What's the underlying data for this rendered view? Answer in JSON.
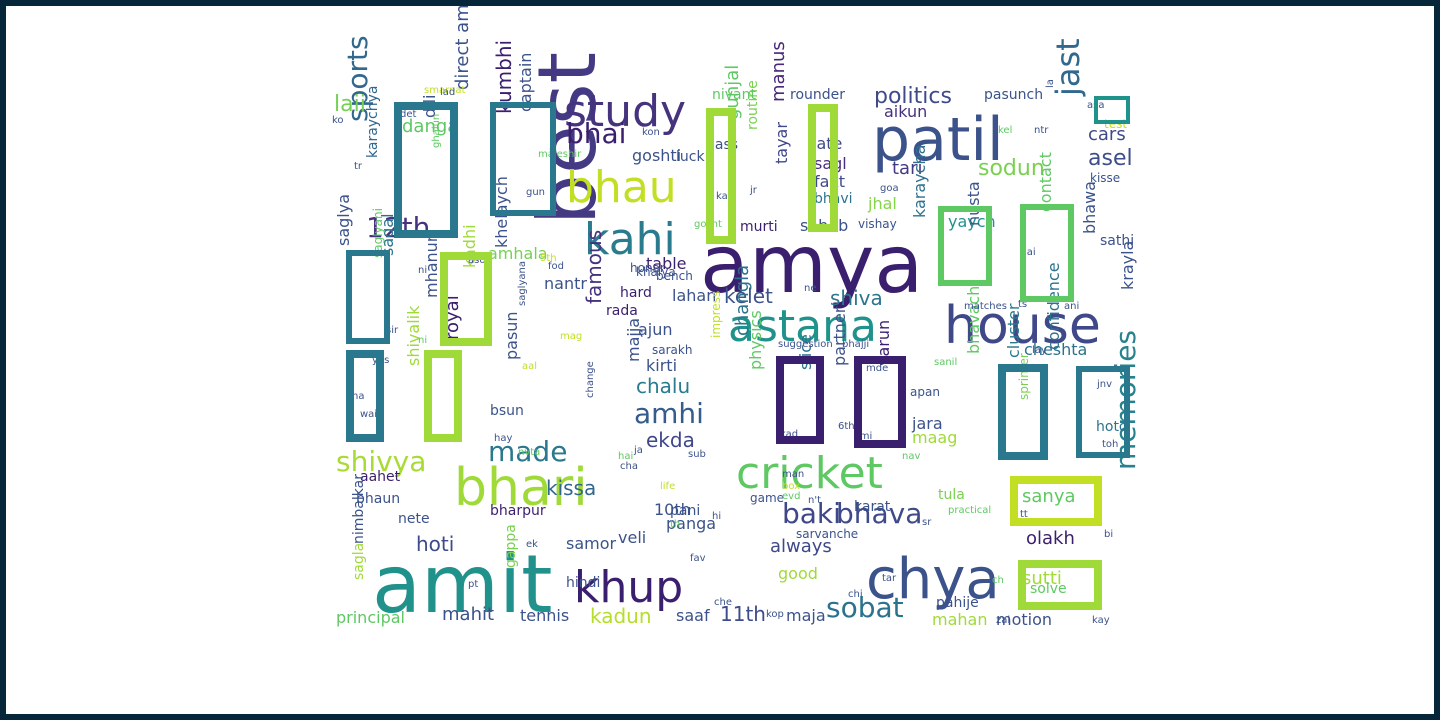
{
  "words": [
    {
      "t": "amya",
      "c": "#3b1f6f"
    },
    {
      "t": "best",
      "c": "#433a83"
    },
    {
      "t": "amit",
      "c": "#21918c"
    },
    {
      "t": "patil",
      "c": "#3b528b"
    },
    {
      "t": "house",
      "c": "#3f4889"
    },
    {
      "t": "bhari",
      "c": "#a0da39"
    },
    {
      "t": "chya",
      "c": "#3b528b"
    },
    {
      "t": "cricket",
      "c": "#5ec962"
    },
    {
      "t": "astana",
      "c": "#20928c"
    },
    {
      "t": "khup",
      "c": "#3b1f6f"
    },
    {
      "t": "bhau",
      "c": "#c2df23"
    },
    {
      "t": "kahi",
      "c": "#2a7b8e"
    },
    {
      "t": "study",
      "c": "#46337e"
    },
    {
      "t": "bhai",
      "c": "#3b1f6f"
    },
    {
      "t": "jast",
      "c": "#31688e"
    },
    {
      "t": "memories",
      "c": "#26828e"
    },
    {
      "t": "sports",
      "c": "#31688e"
    },
    {
      "t": "12th",
      "c": "#46327e"
    },
    {
      "t": "made",
      "c": "#2a788e"
    },
    {
      "t": "shivya",
      "c": "#a8db34"
    },
    {
      "t": "amhi",
      "c": "#365c8d"
    },
    {
      "t": "baki",
      "c": "#3f4788"
    },
    {
      "t": "sobat",
      "c": "#2c728e"
    },
    {
      "t": "bhava",
      "c": "#3e4a89"
    },
    {
      "t": "politics",
      "c": "#3e4a89"
    },
    {
      "t": "laii",
      "c": "#75d054"
    },
    {
      "t": "sodun",
      "c": "#7ad151"
    },
    {
      "t": "asel",
      "c": "#3d4e8a"
    },
    {
      "t": "cars",
      "c": "#3e4a89"
    },
    {
      "t": "tari",
      "c": "#433a83"
    },
    {
      "t": "fakt",
      "c": "#3e4a89"
    },
    {
      "t": "sagl",
      "c": "#472e7c"
    },
    {
      "t": "late",
      "c": "#3e4a89"
    },
    {
      "t": "manus",
      "c": "#482878"
    },
    {
      "t": "aikun",
      "c": "#46327e"
    },
    {
      "t": "kelet",
      "c": "#3b528b"
    },
    {
      "t": "shiva",
      "c": "#2b758e"
    },
    {
      "t": "famous",
      "c": "#46327e"
    },
    {
      "t": "chalu",
      "c": "#287c8e"
    },
    {
      "t": "ekda",
      "c": "#3f4788"
    },
    {
      "t": "kissa",
      "c": "#31668e"
    },
    {
      "t": "hoti",
      "c": "#3e4a89"
    },
    {
      "t": "mahit",
      "c": "#3b528b"
    },
    {
      "t": "11th",
      "c": "#3d4d8a"
    },
    {
      "t": "kadun",
      "c": "#b5de2b"
    },
    {
      "t": "always",
      "c": "#3f4889"
    },
    {
      "t": "olakh",
      "c": "#3b1f6f"
    },
    {
      "t": "sanya",
      "c": "#5ec962"
    },
    {
      "t": "sutti",
      "c": "#a2da37"
    },
    {
      "t": "goshti",
      "c": "#3b528b"
    },
    {
      "t": "amhala",
      "c": "#75d054"
    },
    {
      "t": "direct amyala",
      "c": "#3b528b"
    },
    {
      "t": "danga",
      "c": "#5ec962"
    },
    {
      "t": "dili",
      "c": "#3b528b"
    },
    {
      "t": "karaychya",
      "c": "#31688e"
    },
    {
      "t": "kumbhi",
      "c": "#3b1f6f"
    },
    {
      "t": "captain",
      "c": "#3b528b"
    },
    {
      "t": "gunjal",
      "c": "#5ec962"
    },
    {
      "t": "routine",
      "c": "#7ad151"
    },
    {
      "t": "bass",
      "c": "#3b528b"
    },
    {
      "t": "luck",
      "c": "#3b528b"
    },
    {
      "t": "tayar",
      "c": "#3f4889"
    },
    {
      "t": "bhavi",
      "c": "#2c728e"
    },
    {
      "t": "jhal",
      "c": "#85d54a"
    },
    {
      "t": "saheb",
      "c": "#3b528b"
    },
    {
      "t": "karaycha",
      "c": "#2c728e"
    },
    {
      "t": "yaych",
      "c": "#20928c"
    },
    {
      "t": "nusta",
      "c": "#3b528b"
    },
    {
      "t": "contact",
      "c": "#5ec962"
    },
    {
      "t": "bhawa",
      "c": "#3b528b"
    },
    {
      "t": "sathi",
      "c": "#3b528b"
    },
    {
      "t": "krayla",
      "c": "#3b528b"
    },
    {
      "t": "cheshta",
      "c": "#2c728e"
    },
    {
      "t": "confidence",
      "c": "#2c728e"
    },
    {
      "t": "cluster",
      "c": "#2a788e"
    },
    {
      "t": "sprinter",
      "c": "#7ad151"
    },
    {
      "t": "hoto",
      "c": "#2c728e"
    },
    {
      "t": "bhavach",
      "c": "#5ec962"
    },
    {
      "t": "jara",
      "c": "#3b528b"
    },
    {
      "t": "maag",
      "c": "#a0da39"
    },
    {
      "t": "varun",
      "c": "#3b1f6f"
    },
    {
      "t": "partner",
      "c": "#3b528b"
    },
    {
      "t": "slice",
      "c": "#2c728e"
    },
    {
      "t": "physics",
      "c": "#5ec962"
    },
    {
      "t": "changla",
      "c": "#2c728e"
    },
    {
      "t": "majja",
      "c": "#3b528b"
    },
    {
      "t": "pasun",
      "c": "#3b528b"
    },
    {
      "t": "khelaych",
      "c": "#3b528b"
    },
    {
      "t": "nantr",
      "c": "#3b528b"
    },
    {
      "t": "table",
      "c": "#3b1f6f"
    },
    {
      "t": "lahan",
      "c": "#3b528b"
    },
    {
      "t": "ajun",
      "c": "#3b528b"
    },
    {
      "t": "kirti",
      "c": "#3b528b"
    },
    {
      "t": "hard",
      "c": "#3b1f6f"
    },
    {
      "t": "rada",
      "c": "#3b1f6f"
    },
    {
      "t": "honar",
      "c": "#3b528b"
    },
    {
      "t": "bench",
      "c": "#3b528b"
    },
    {
      "t": "royal",
      "c": "#3b1f6f"
    },
    {
      "t": "kadhi",
      "c": "#a0da39"
    },
    {
      "t": "sagal",
      "c": "#2c728e"
    },
    {
      "t": "saglyani",
      "c": "#5ec962"
    },
    {
      "t": "mhanun",
      "c": "#3b528b"
    },
    {
      "t": "shivalik",
      "c": "#a0da39"
    },
    {
      "t": "saglya",
      "c": "#3b528b"
    },
    {
      "t": "bsun",
      "c": "#3b528b"
    },
    {
      "t": "bhaun",
      "c": "#3b528b"
    },
    {
      "t": "aahet",
      "c": "#3b1f6f"
    },
    {
      "t": "nete",
      "c": "#3b528b"
    },
    {
      "t": "nimbalkar",
      "c": "#3b528b"
    },
    {
      "t": "sagla",
      "c": "#a0da39"
    },
    {
      "t": "principal",
      "c": "#5ec962"
    },
    {
      "t": "tennis",
      "c": "#3b528b"
    },
    {
      "t": "saaf",
      "c": "#3b528b"
    },
    {
      "t": "maja",
      "c": "#3b528b"
    },
    {
      "t": "gappa",
      "c": "#7ad151"
    },
    {
      "t": "hindi",
      "c": "#3b528b"
    },
    {
      "t": "samor",
      "c": "#3b528b"
    },
    {
      "t": "veli",
      "c": "#3b528b"
    },
    {
      "t": "panga",
      "c": "#3b528b"
    },
    {
      "t": "pani",
      "c": "#3b528b"
    },
    {
      "t": "10th",
      "c": "#3b528b"
    },
    {
      "t": "bharpur",
      "c": "#3b1f6f"
    },
    {
      "t": "murti",
      "c": "#3b1f6f"
    },
    {
      "t": "good",
      "c": "#a0da39"
    },
    {
      "t": "karat",
      "c": "#3b528b"
    },
    {
      "t": "tula",
      "c": "#7ad151"
    },
    {
      "t": "sarvanche",
      "c": "#3b528b"
    },
    {
      "t": "mahan",
      "c": "#a0da39"
    },
    {
      "t": "motion",
      "c": "#3b528b"
    },
    {
      "t": "solve",
      "c": "#5ec962"
    },
    {
      "t": "pahije",
      "c": "#3b528b"
    },
    {
      "t": "rounder",
      "c": "#3b528b"
    },
    {
      "t": "nivant",
      "c": "#5ec962"
    },
    {
      "t": "pasunch",
      "c": "#3b528b"
    },
    {
      "t": "game",
      "c": "#3b528b"
    },
    {
      "t": "vishay",
      "c": "#3b528b"
    },
    {
      "t": "apan",
      "c": "#3b528b"
    },
    {
      "t": "test",
      "c": "#c2df23"
    },
    {
      "t": "kisse",
      "c": "#3b528b"
    },
    {
      "t": "suggestion",
      "c": "#3b528b"
    },
    {
      "t": "bhajji",
      "c": "#3b528b"
    },
    {
      "t": "sarakh",
      "c": "#3b528b"
    },
    {
      "t": "impress",
      "c": "#c2df23"
    },
    {
      "t": "change",
      "c": "#3b528b"
    },
    {
      "t": "khalya",
      "c": "#3b528b"
    },
    {
      "t": "saglyana",
      "c": "#3b528b"
    },
    {
      "t": "matches",
      "c": "#3b528b"
    },
    {
      "t": "smarnat",
      "c": "#c2df23"
    },
    {
      "t": "lad",
      "c": "#3b528b"
    },
    {
      "t": "det",
      "c": "#3b528b"
    },
    {
      "t": "ghalun",
      "c": "#5ec962"
    },
    {
      "t": "majeshir",
      "c": "#5ec962"
    },
    {
      "t": "gun",
      "c": "#3b528b"
    },
    {
      "t": "kon",
      "c": "#3b528b"
    },
    {
      "t": "ka",
      "c": "#3b528b"
    },
    {
      "t": "jr",
      "c": "#3b528b"
    },
    {
      "t": "gosht",
      "c": "#5ec962"
    },
    {
      "t": "goa",
      "c": "#3b528b"
    },
    {
      "t": "kel",
      "c": "#5ec962"
    },
    {
      "t": "ntr",
      "c": "#3b528b"
    },
    {
      "t": "asa",
      "c": "#3b528b"
    },
    {
      "t": "lai",
      "c": "#3b528b"
    },
    {
      "t": "ts",
      "c": "#3b528b"
    },
    {
      "t": "ani",
      "c": "#3b528b"
    },
    {
      "t": "lay",
      "c": "#3b528b"
    },
    {
      "t": "sanil",
      "c": "#5ec962"
    },
    {
      "t": "jnv",
      "c": "#3b528b"
    },
    {
      "t": "toh",
      "c": "#3b528b"
    },
    {
      "t": "mde",
      "c": "#3b528b"
    },
    {
      "t": "kad",
      "c": "#3b528b"
    },
    {
      "t": "kmi",
      "c": "#3b528b"
    },
    {
      "t": "6th",
      "c": "#3b528b"
    },
    {
      "t": "nav",
      "c": "#5ec962"
    },
    {
      "t": "man",
      "c": "#3b528b"
    },
    {
      "t": "box",
      "c": "#c2df23"
    },
    {
      "t": "evd",
      "c": "#5ec962"
    },
    {
      "t": "n't",
      "c": "#3b528b"
    },
    {
      "t": "sub",
      "c": "#3b528b"
    },
    {
      "t": "ja",
      "c": "#3b528b"
    },
    {
      "t": "cha",
      "c": "#3b528b"
    },
    {
      "t": "life",
      "c": "#c2df23"
    },
    {
      "t": "th",
      "c": "#5ec962"
    },
    {
      "t": "hi",
      "c": "#3b528b"
    },
    {
      "t": "ek",
      "c": "#3b528b"
    },
    {
      "t": "hay",
      "c": "#3b528b"
    },
    {
      "t": "nvta",
      "c": "#5ec962"
    },
    {
      "t": "aal",
      "c": "#c2df23"
    },
    {
      "t": "mag",
      "c": "#c2df23"
    },
    {
      "t": "fod",
      "c": "#3b528b"
    },
    {
      "t": "5th",
      "c": "#c2df23"
    },
    {
      "t": "aso",
      "c": "#3b528b"
    },
    {
      "t": "ni",
      "c": "#3b528b"
    },
    {
      "t": "sir",
      "c": "#3b528b"
    },
    {
      "t": "yes",
      "c": "#3b528b"
    },
    {
      "t": "na",
      "c": "#3b528b"
    },
    {
      "t": "wai",
      "c": "#3b528b"
    },
    {
      "t": "ko",
      "c": "#3b528b"
    },
    {
      "t": "tr",
      "c": "#3b528b"
    },
    {
      "t": "ne",
      "c": "#3b528b"
    },
    {
      "t": "sr",
      "c": "#3b528b"
    },
    {
      "t": "tt",
      "c": "#3b528b"
    },
    {
      "t": "bi",
      "c": "#3b528b"
    },
    {
      "t": "kay",
      "c": "#3b528b"
    },
    {
      "t": "zal",
      "c": "#3b528b"
    },
    {
      "t": "ch",
      "c": "#5ec962"
    },
    {
      "t": "tar",
      "c": "#3b528b"
    },
    {
      "t": "fav",
      "c": "#3b528b"
    },
    {
      "t": "chi",
      "c": "#3b528b"
    },
    {
      "t": "kop",
      "c": "#3b528b"
    },
    {
      "t": "che",
      "c": "#3b528b"
    },
    {
      "t": "pt",
      "c": "#3b528b"
    },
    {
      "t": "hai",
      "c": "#5ec962"
    },
    {
      "t": "practical",
      "c": "#5ec962"
    },
    {
      "t": "la",
      "c": "#3b528b"
    },
    {
      "t": "ni",
      "c": "#5ec962"
    }
  ],
  "glyph_boxes": [
    {
      "c": "#2a788e"
    },
    {
      "c": "#2a788e"
    },
    {
      "c": "#a0da39"
    },
    {
      "c": "#a0da39"
    },
    {
      "c": "#3b1f6f"
    },
    {
      "c": "#3b1f6f"
    },
    {
      "c": "#5ec962"
    },
    {
      "c": "#5ec962"
    },
    {
      "c": "#2a788e"
    },
    {
      "c": "#a0da39"
    },
    {
      "c": "#2a788e"
    },
    {
      "c": "#2a788e"
    },
    {
      "c": "#2a788e"
    },
    {
      "c": "#c2df23"
    },
    {
      "c": "#a0da39"
    },
    {
      "c": "#a0da39"
    },
    {
      "c": "#20928c"
    }
  ]
}
